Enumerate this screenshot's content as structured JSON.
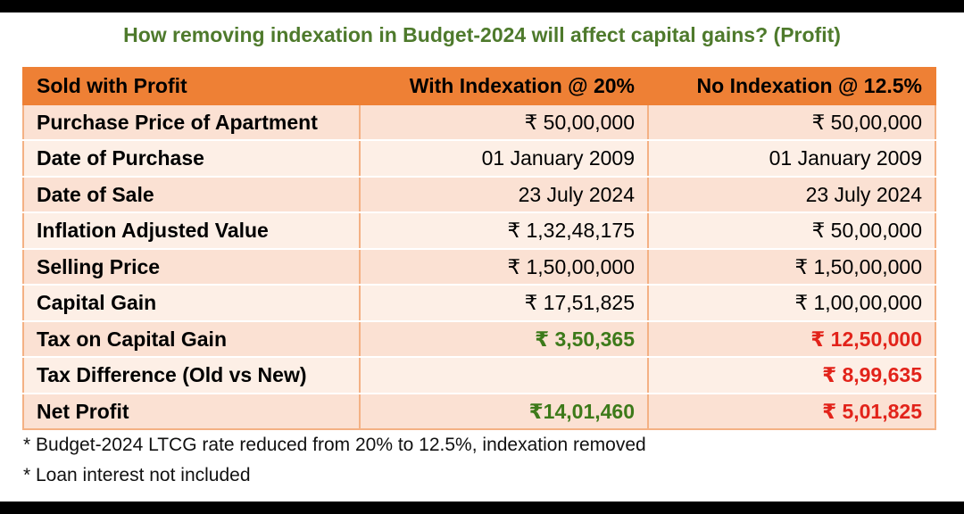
{
  "title": "How removing indexation in Budget-2024 will affect capital gains? (Profit)",
  "table": {
    "headers": [
      "Sold with Profit",
      "With Indexation @ 20%",
      "No Indexation @ 12.5%"
    ],
    "rows": [
      {
        "label": "Purchase Price of Apartment",
        "with": "₹ 50,00,000",
        "without": "₹ 50,00,000"
      },
      {
        "label": "Date of Purchase",
        "with": "01 January 2009",
        "without": "01 January 2009"
      },
      {
        "label": "Date of Sale",
        "with": "23 July 2024",
        "without": "23 July 2024"
      },
      {
        "label": "Inflation Adjusted Value",
        "with": "₹ 1,32,48,175",
        "without": "₹ 50,00,000"
      },
      {
        "label": "Selling Price",
        "with": "₹ 1,50,00,000",
        "without": "₹ 1,50,00,000"
      },
      {
        "label": "Capital Gain",
        "with": "₹ 17,51,825",
        "without": "₹ 1,00,00,000"
      },
      {
        "label": "Tax on Capital Gain",
        "with": "₹ 3,50,365",
        "without": "₹ 12,50,000"
      },
      {
        "label": "Tax Difference (Old vs New)",
        "with": "",
        "without": "₹ 8,99,635"
      },
      {
        "label": "Net Profit",
        "with": "₹14,01,460",
        "without": "₹ 5,01,825"
      }
    ]
  },
  "notes": [
    "* Budget-2024 LTCG rate reduced from 20% to 12.5%, indexation removed",
    "* Loan interest not included"
  ],
  "colors": {
    "title": "#4e7a2c",
    "header_bg": "#ee8035",
    "row_bg_odd": "#fbe1d3",
    "row_bg_even": "#fdefe6",
    "positive": "#3d7a1a",
    "negative": "#e2231a"
  }
}
